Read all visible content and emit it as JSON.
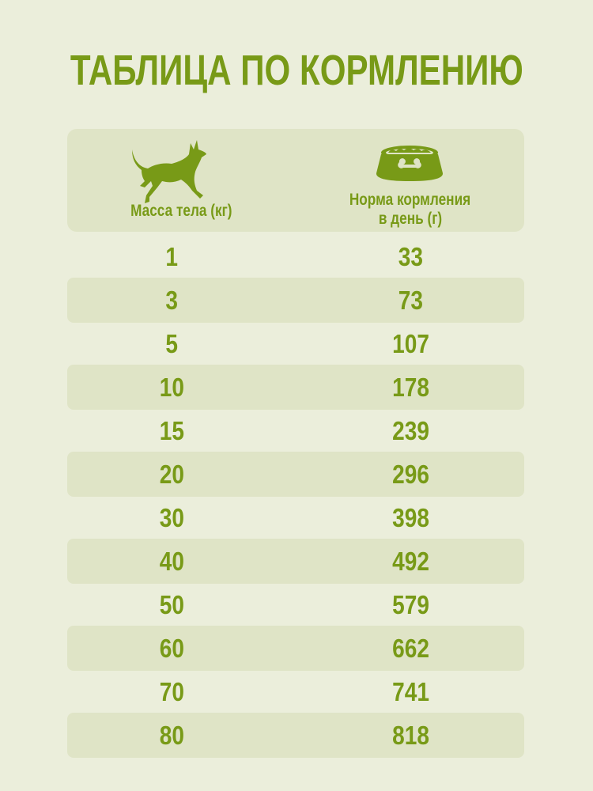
{
  "title": "ТАБЛИЦА ПО КОРМЛЕНИЮ",
  "colors": {
    "accent": "#789a17",
    "background": "#ebeedb",
    "stripe": "#dfe4c6"
  },
  "header": {
    "col1": {
      "icon": "dog-icon",
      "label": "Масса тела (кг)"
    },
    "col2": {
      "icon": "food-bowl-icon",
      "label_line1": "Норма кормления",
      "label_line2": "в день (г)"
    }
  },
  "rows": [
    {
      "weight": "1",
      "food": "33"
    },
    {
      "weight": "3",
      "food": "73"
    },
    {
      "weight": "5",
      "food": "107"
    },
    {
      "weight": "10",
      "food": "178"
    },
    {
      "weight": "15",
      "food": "239"
    },
    {
      "weight": "20",
      "food": "296"
    },
    {
      "weight": "30",
      "food": "398"
    },
    {
      "weight": "40",
      "food": "492"
    },
    {
      "weight": "50",
      "food": "579"
    },
    {
      "weight": "60",
      "food": "662"
    },
    {
      "weight": "70",
      "food": "741"
    },
    {
      "weight": "80",
      "food": "818"
    }
  ]
}
